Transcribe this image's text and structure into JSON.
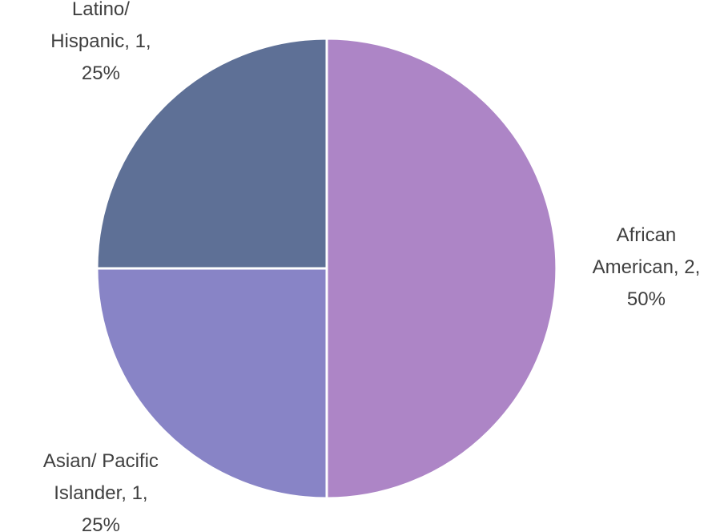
{
  "chart_data": {
    "type": "pie",
    "values": [
      2,
      1,
      1
    ],
    "value_labels": [
      [
        "African",
        "American, 2,",
        "50%"
      ],
      [
        "Asian/ Pacific",
        "Islander, 1,",
        "25%"
      ],
      [
        "Latino/",
        "Hispanic, 1,",
        "25%"
      ]
    ],
    "colors": [
      "#ad85c6",
      "#8884c6",
      "#5e7096"
    ]
  }
}
